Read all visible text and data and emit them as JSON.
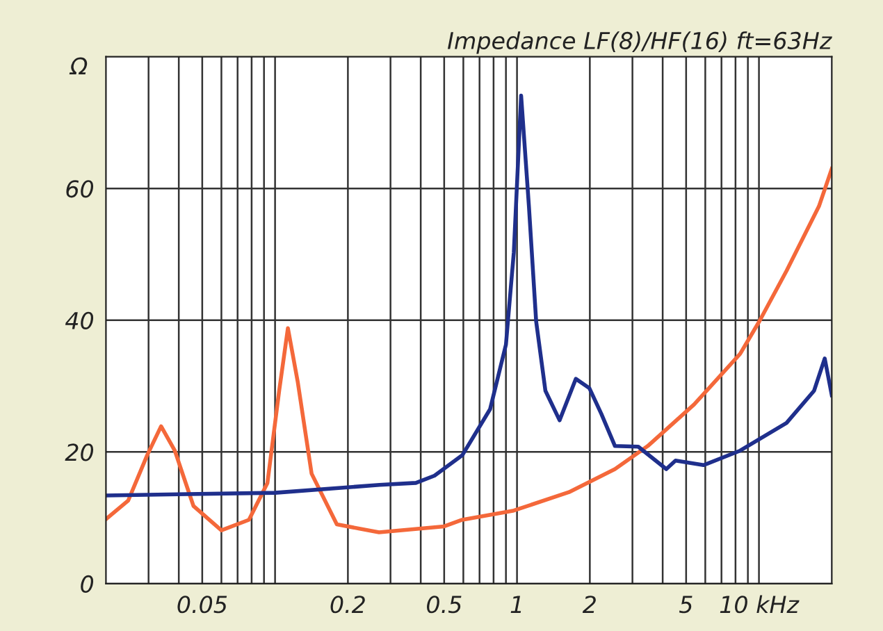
{
  "chart_data": {
    "type": "line",
    "title": "Impedance LF(8)/HF(16) ft=63Hz",
    "ylabel": "Ω",
    "log": "x",
    "grid": true,
    "xlim": [
      0.02,
      20
    ],
    "ylim": [
      0,
      80
    ],
    "xticks": [
      {
        "value": 0.03,
        "label": null
      },
      {
        "value": 0.04,
        "label": null
      },
      0.05,
      {
        "value": 0.06,
        "label": null
      },
      {
        "value": 0.07,
        "label": null
      },
      {
        "value": 0.08,
        "label": null
      },
      {
        "value": 0.09,
        "label": null
      },
      {
        "value": 0.1,
        "label": null
      },
      0.2,
      {
        "value": 0.3,
        "label": null
      },
      {
        "value": 0.4,
        "label": null
      },
      0.5,
      {
        "value": 0.6,
        "label": null
      },
      {
        "value": 0.7,
        "label": null
      },
      {
        "value": 0.8,
        "label": null
      },
      {
        "value": 0.9,
        "label": null
      },
      1,
      2,
      {
        "value": 3,
        "label": null
      },
      {
        "value": 4,
        "label": null
      },
      5,
      {
        "value": 6,
        "label": null
      },
      {
        "value": 7,
        "label": null
      },
      {
        "value": 8,
        "label": null
      },
      {
        "value": 9,
        "label": null
      },
      {
        "value": 10,
        "label": "10 kHz"
      }
    ],
    "yticks": [
      0,
      20,
      40,
      60
    ],
    "series": [
      {
        "color": "#f4683a",
        "x": [
          0.02,
          0.0247,
          0.0296,
          0.0338,
          0.0385,
          0.046,
          0.06,
          0.078,
          0.093,
          0.104,
          0.113,
          0.124,
          0.1416,
          0.18,
          0.269,
          0.5,
          0.594,
          0.97,
          1.64,
          2.54,
          3.47,
          5.39,
          8.36,
          10.06,
          13.0,
          17.7,
          20
        ],
        "values": [
          9.8,
          12.6,
          19.5,
          23.9,
          20.2,
          11.8,
          8.1,
          9.7,
          15.3,
          29.3,
          38.8,
          30.7,
          16.7,
          9.0,
          7.8,
          8.7,
          9.7,
          11.1,
          13.9,
          17.4,
          20.9,
          27.2,
          34.9,
          39.9,
          47.5,
          57.3,
          63.0
        ]
      },
      {
        "color": "#1f2f8c",
        "x": [
          0.02,
          0.1,
          0.27,
          0.382,
          0.456,
          0.594,
          0.774,
          0.9,
          0.97,
          1.04,
          1.12,
          1.2,
          1.31,
          1.5,
          1.75,
          1.99,
          2.23,
          2.54,
          3.17,
          4.14,
          4.52,
          5.9,
          8.36,
          13.0,
          16.9,
          18.7,
          20
        ],
        "values": [
          13.4,
          13.8,
          15.0,
          15.3,
          16.4,
          19.5,
          26.5,
          36.3,
          50.3,
          74.1,
          57.3,
          39.8,
          29.3,
          24.8,
          31.1,
          29.7,
          25.8,
          20.9,
          20.8,
          17.4,
          18.7,
          18.0,
          20.2,
          24.4,
          29.3,
          34.2,
          28.6
        ]
      }
    ]
  }
}
